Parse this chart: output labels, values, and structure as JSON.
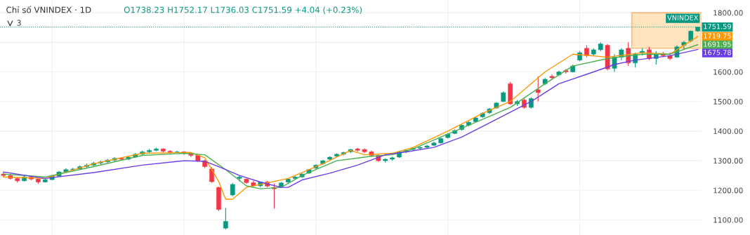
{
  "chart_data": {
    "type": "candlestick",
    "title": "Chỉ số VNINDEX · 1D",
    "subtitle": "O1738.23 H1752.17 L1736.03 C1751.59 +4.04 (+0.23%)",
    "categories": [
      null,
      null,
      null,
      null,
      null,
      null,
      null,
      null,
      null,
      null,
      null,
      null,
      null,
      null,
      null,
      null,
      null,
      null,
      null,
      null,
      null,
      null,
      null,
      null,
      null,
      null,
      null,
      null,
      null,
      null,
      null,
      null,
      null,
      null,
      null,
      null,
      null,
      null,
      null,
      null,
      null,
      null,
      null,
      null,
      null,
      null,
      null,
      null,
      null,
      null,
      null,
      null,
      null,
      null,
      null,
      null,
      null,
      null,
      null,
      null,
      null,
      null,
      null,
      null,
      null,
      null,
      null,
      null,
      null,
      null,
      null,
      null,
      null,
      null,
      null,
      null,
      null,
      null,
      null,
      null,
      null,
      null,
      null,
      null,
      null,
      null,
      null,
      null,
      null,
      null,
      null,
      null,
      null,
      null,
      null,
      null,
      null,
      null,
      null,
      null,
      null
    ],
    "ohlc": [
      [
        1255,
        1262,
        1245,
        1250
      ],
      [
        1250,
        1255,
        1236,
        1240
      ],
      [
        1240,
        1244,
        1226,
        1232
      ],
      [
        1232,
        1250,
        1230,
        1245
      ],
      [
        1245,
        1248,
        1234,
        1238
      ],
      [
        1238,
        1240,
        1222,
        1228
      ],
      [
        1228,
        1240,
        1226,
        1236
      ],
      [
        1236,
        1252,
        1234,
        1248
      ],
      [
        1248,
        1265,
        1246,
        1262
      ],
      [
        1262,
        1274,
        1260,
        1270
      ],
      [
        1270,
        1276,
        1266,
        1272
      ],
      [
        1272,
        1284,
        1270,
        1280
      ],
      [
        1280,
        1290,
        1276,
        1285
      ],
      [
        1285,
        1296,
        1282,
        1292
      ],
      [
        1292,
        1300,
        1288,
        1296
      ],
      [
        1296,
        1306,
        1292,
        1302
      ],
      [
        1302,
        1312,
        1298,
        1308
      ],
      [
        1308,
        1312,
        1300,
        1305
      ],
      [
        1305,
        1316,
        1302,
        1312
      ],
      [
        1312,
        1326,
        1310,
        1322
      ],
      [
        1322,
        1334,
        1320,
        1330
      ],
      [
        1330,
        1340,
        1326,
        1335
      ],
      [
        1335,
        1344,
        1332,
        1340
      ],
      [
        1340,
        1342,
        1328,
        1332
      ],
      [
        1332,
        1336,
        1324,
        1328
      ],
      [
        1328,
        1334,
        1325,
        1330
      ],
      [
        1330,
        1332,
        1320,
        1325
      ],
      [
        1325,
        1328,
        1312,
        1318
      ],
      [
        1318,
        1320,
        1296,
        1300
      ],
      [
        1300,
        1304,
        1275,
        1280
      ],
      [
        1272,
        1278,
        1225,
        1229
      ],
      [
        1210,
        1212,
        1130,
        1135
      ],
      [
        1072,
        1140,
        1068,
        1095
      ],
      [
        1184,
        1225,
        1180,
        1220
      ],
      [
        1240,
        1250,
        1230,
        1245
      ],
      [
        1238,
        1240,
        1222,
        1226
      ],
      [
        1226,
        1232,
        1212,
        1215
      ],
      [
        1215,
        1230,
        1210,
        1228
      ],
      [
        1228,
        1232,
        1210,
        1214
      ],
      [
        1210,
        1222,
        1138,
        1205
      ],
      [
        1212,
        1228,
        1208,
        1225
      ],
      [
        1228,
        1240,
        1225,
        1238
      ],
      [
        1240,
        1248,
        1236,
        1245
      ],
      [
        1245,
        1258,
        1242,
        1255
      ],
      [
        1258,
        1272,
        1255,
        1270
      ],
      [
        1275,
        1288,
        1272,
        1285
      ],
      [
        1290,
        1302,
        1286,
        1300
      ],
      [
        1305,
        1315,
        1300,
        1312
      ],
      [
        1315,
        1325,
        1312,
        1322
      ],
      [
        1322,
        1330,
        1318,
        1328
      ],
      [
        1330,
        1340,
        1326,
        1338
      ],
      [
        1340,
        1344,
        1330,
        1335
      ],
      [
        1338,
        1342,
        1326,
        1330
      ],
      [
        1330,
        1334,
        1314,
        1318
      ],
      [
        1318,
        1322,
        1296,
        1300
      ],
      [
        1300,
        1308,
        1294,
        1305
      ],
      [
        1305,
        1314,
        1300,
        1310
      ],
      [
        1312,
        1332,
        1310,
        1330
      ],
      [
        1330,
        1338,
        1326,
        1335
      ],
      [
        1338,
        1345,
        1334,
        1342
      ],
      [
        1342,
        1348,
        1338,
        1345
      ],
      [
        1345,
        1354,
        1342,
        1350
      ],
      [
        1352,
        1364,
        1350,
        1360
      ],
      [
        1360,
        1378,
        1358,
        1375
      ],
      [
        1378,
        1394,
        1375,
        1390
      ],
      [
        1392,
        1406,
        1390,
        1402
      ],
      [
        1405,
        1424,
        1402,
        1420
      ],
      [
        1420,
        1434,
        1416,
        1430
      ],
      [
        1432,
        1448,
        1428,
        1445
      ],
      [
        1448,
        1464,
        1445,
        1460
      ],
      [
        1462,
        1478,
        1458,
        1475
      ],
      [
        1478,
        1498,
        1475,
        1495
      ],
      [
        1500,
        1534,
        1498,
        1530
      ],
      [
        1560,
        1566,
        1488,
        1492
      ],
      [
        1492,
        1505,
        1485,
        1500
      ],
      [
        1505,
        1510,
        1476,
        1480
      ],
      [
        1480,
        1514,
        1476,
        1510
      ],
      [
        1540,
        1585,
        1500,
        1530
      ],
      [
        1560,
        1580,
        1555,
        1575
      ],
      [
        1585,
        1592,
        1574,
        1580
      ],
      [
        1590,
        1604,
        1586,
        1600
      ],
      [
        1605,
        1610,
        1594,
        1600
      ],
      [
        1600,
        1625,
        1598,
        1620
      ],
      [
        1640,
        1670,
        1636,
        1665
      ],
      [
        1680,
        1690,
        1650,
        1655
      ],
      [
        1660,
        1680,
        1655,
        1675
      ],
      [
        1675,
        1700,
        1670,
        1695
      ],
      [
        1690,
        1695,
        1605,
        1610
      ],
      [
        1612,
        1660,
        1600,
        1650
      ],
      [
        1650,
        1680,
        1640,
        1675
      ],
      [
        1680,
        1700,
        1620,
        1630
      ],
      [
        1630,
        1665,
        1615,
        1660
      ],
      [
        1665,
        1680,
        1655,
        1670
      ],
      [
        1675,
        1685,
        1640,
        1645
      ],
      [
        1645,
        1670,
        1625,
        1660
      ],
      [
        1660,
        1668,
        1650,
        1655
      ],
      [
        1655,
        1665,
        1640,
        1645
      ],
      [
        1650,
        1690,
        1648,
        1685
      ],
      [
        1690,
        1705,
        1675,
        1700
      ],
      [
        1705,
        1740,
        1700,
        1738
      ],
      [
        1738.23,
        1752.17,
        1736.03,
        1751.59
      ]
    ],
    "colors": [
      "#f23645",
      "#f23645",
      "#f23645",
      "#089981",
      "#f23645",
      "#f23645",
      "#089981",
      "#089981",
      "#089981",
      "#089981",
      "#089981",
      "#089981",
      "#089981",
      "#089981",
      "#089981",
      "#089981",
      "#089981",
      "#f23645",
      "#089981",
      "#089981",
      "#089981",
      "#089981",
      "#089981",
      "#f23645",
      "#f23645",
      "#089981",
      "#f23645",
      "#f23645",
      "#f23645",
      "#f23645",
      "#f23645",
      "#f23645",
      "#089981",
      "#089981",
      "#089981",
      "#f23645",
      "#f23645",
      "#089981",
      "#f23645",
      "#f23645",
      "#089981",
      "#089981",
      "#089981",
      "#089981",
      "#089981",
      "#089981",
      "#089981",
      "#089981",
      "#089981",
      "#089981",
      "#089981",
      "#f23645",
      "#f23645",
      "#f23645",
      "#f23645",
      "#089981",
      "#089981",
      "#089981",
      "#089981",
      "#089981",
      "#089981",
      "#089981",
      "#089981",
      "#089981",
      "#089981",
      "#089981",
      "#089981",
      "#089981",
      "#089981",
      "#089981",
      "#089981",
      "#089981",
      "#089981",
      "#f23645",
      "#089981",
      "#f23645",
      "#089981",
      "#f23645",
      "#089981",
      "#f23645",
      "#089981",
      "#f23645",
      "#089981",
      "#089981",
      "#f23645",
      "#089981",
      "#089981",
      "#f23645",
      "#089981",
      "#089981",
      "#f23645",
      "#089981",
      "#089981",
      "#f23645",
      "#089981",
      "#f23645",
      "#f23645",
      "#089981",
      "#089981",
      "#089981",
      "#089981"
    ],
    "series": [
      {
        "type": "line",
        "color": "#ff9800",
        "values": [
          1245,
          null,
          null,
          null,
          null,
          null,
          1240,
          null,
          null,
          null,
          null,
          null,
          null,
          1290,
          null,
          null,
          null,
          null,
          null,
          null,
          1325,
          null,
          null,
          null,
          null,
          null,
          null,
          1328,
          null,
          1310,
          null,
          1230,
          1170,
          1170,
          null,
          1210,
          null,
          1220,
          null,
          null,
          null,
          1240,
          null,
          null,
          null,
          null,
          1290,
          null,
          null,
          null,
          1335,
          null,
          1320,
          null,
          null,
          null,
          1325,
          null,
          null,
          1345,
          null,
          null,
          null,
          null,
          1400,
          null,
          null,
          null,
          null,
          1460,
          null,
          null,
          null,
          1500,
          null,
          null,
          null,
          null,
          1600,
          null,
          null,
          null,
          1660,
          null,
          null,
          null,
          null,
          1650,
          null,
          null,
          null,
          null,
          1665,
          null,
          null,
          null,
          1660,
          null,
          null,
          null,
          1719.75
        ]
      },
      {
        "type": "line",
        "color": "#4caf50",
        "values": [
          1255,
          null,
          null,
          null,
          null,
          null,
          1245,
          null,
          null,
          null,
          null,
          null,
          null,
          1280,
          null,
          null,
          null,
          null,
          null,
          null,
          1318,
          null,
          null,
          null,
          null,
          null,
          1325,
          null,
          null,
          1320,
          null,
          null,
          1270,
          null,
          null,
          1215,
          null,
          1205,
          null,
          null,
          1210,
          null,
          null,
          1250,
          null,
          null,
          null,
          null,
          1300,
          null,
          null,
          null,
          null,
          1315,
          null,
          null,
          1320,
          null,
          null,
          1340,
          null,
          null,
          null,
          null,
          1390,
          null,
          null,
          null,
          null,
          1440,
          null,
          null,
          null,
          1480,
          null,
          null,
          null,
          null,
          1560,
          null,
          null,
          null,
          1620,
          null,
          null,
          null,
          null,
          1645,
          null,
          null,
          null,
          null,
          1660,
          null,
          null,
          null,
          1660,
          null,
          null,
          null,
          1691.95
        ]
      },
      {
        "type": "line",
        "color": "#6a3de8",
        "values": [
          1262,
          null,
          null,
          null,
          null,
          null,
          1240,
          null,
          null,
          null,
          null,
          null,
          null,
          1260,
          null,
          null,
          null,
          null,
          null,
          null,
          1285,
          null,
          null,
          null,
          null,
          null,
          1300,
          null,
          null,
          1298,
          null,
          1280,
          null,
          null,
          1250,
          null,
          null,
          1228,
          null,
          null,
          1210,
          1210,
          null,
          1235,
          null,
          null,
          null,
          1258,
          null,
          null,
          null,
          1285,
          null,
          null,
          null,
          1320,
          null,
          null,
          1330,
          null,
          null,
          null,
          1345,
          null,
          null,
          null,
          1380,
          null,
          null,
          null,
          null,
          1440,
          null,
          null,
          null,
          null,
          1500,
          null,
          null,
          null,
          1560,
          null,
          null,
          null,
          null,
          1600,
          null,
          null,
          1625,
          null,
          null,
          1640,
          null,
          null,
          null,
          null,
          1655,
          null,
          null,
          null,
          1675.78
        ]
      }
    ],
    "ylim": [
      1049,
      1843
    ],
    "yticks": [
      {
        "value": 1100,
        "label": "1100.00"
      },
      {
        "value": 1200,
        "label": "1200.00"
      },
      {
        "value": 1300,
        "label": "1300.00"
      },
      {
        "value": 1400,
        "label": "1400.00"
      },
      {
        "value": 1500,
        "label": "1500.00"
      },
      {
        "value": 1600,
        "label": "1600.00"
      },
      {
        "value": 1700,
        "label": null
      },
      {
        "value": 1800,
        "label": "1800.00"
      }
    ],
    "tick_labels": "y",
    "grid": true,
    "line_style": "solid",
    "ref_lines": [
      {
        "axis": "y",
        "value": 1751.59,
        "label": "1751.59",
        "color": "#089981",
        "line_style": "dotted"
      }
    ],
    "bands": [
      {
        "axis": "y",
        "from": 1680,
        "to": 1800,
        "color": "#ffe0b2"
      }
    ],
    "annotations": [
      "VNINDEX",
      "1719.75",
      "1691.95",
      "1675.78",
      "3"
    ]
  }
}
